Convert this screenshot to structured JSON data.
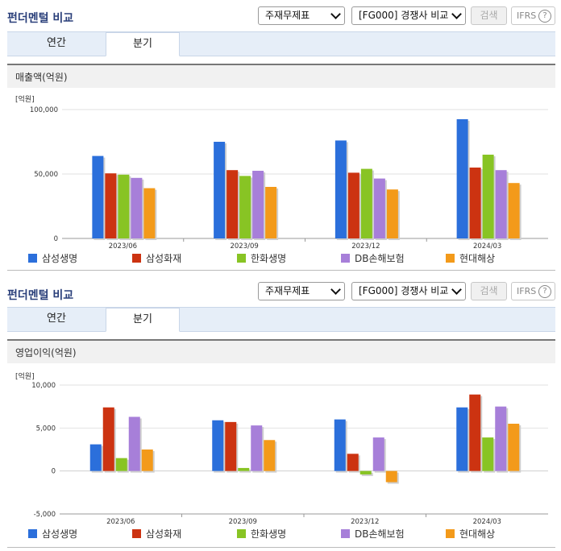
{
  "panels": [
    {
      "title": "펀더멘털 비교",
      "select1": "주재무제표",
      "select2": "[FG000] 경쟁사 비교",
      "search_label": "검색",
      "ifrs_label": "IFRS",
      "ifrs_help": "?",
      "tabs": [
        {
          "label": "연간"
        },
        {
          "label": "분기"
        }
      ],
      "active_tab": 1,
      "section_title": "매출액(억원)"
    },
    {
      "title": "펀더멘털 비교",
      "select1": "주재무제표",
      "select2": "[FG000] 경쟁사 비교",
      "search_label": "검색",
      "ifrs_label": "IFRS",
      "ifrs_help": "?",
      "tabs": [
        {
          "label": "연간"
        },
        {
          "label": "분기"
        }
      ],
      "active_tab": 1,
      "section_title": "영업이익(억원)"
    }
  ],
  "legend": [
    {
      "name": "삼성생명",
      "color": "#2b6fdb"
    },
    {
      "name": "삼성화재",
      "color": "#cc3311"
    },
    {
      "name": "한화생명",
      "color": "#88c424"
    },
    {
      "name": "DB손해보험",
      "color": "#a77fd9"
    },
    {
      "name": "현대해상",
      "color": "#f39a1a"
    }
  ],
  "chart_data": [
    {
      "type": "bar",
      "unit_label": "[억원]",
      "categories": [
        "2023/06",
        "2023/09",
        "2023/12",
        "2024/03"
      ],
      "ylim": [
        0,
        100000
      ],
      "ticks": [
        {
          "v": 100000,
          "label": "100,000"
        },
        {
          "v": 50000,
          "label": "50,000"
        },
        {
          "v": 0,
          "label": "0"
        }
      ],
      "series": [
        {
          "name": "삼성생명",
          "values": [
            64000,
            75000,
            76000,
            92500
          ]
        },
        {
          "name": "삼성화재",
          "values": [
            50500,
            53000,
            51000,
            55000
          ]
        },
        {
          "name": "한화생명",
          "values": [
            49500,
            48500,
            54000,
            65000
          ]
        },
        {
          "name": "DB손해보험",
          "values": [
            47000,
            52500,
            46500,
            53000
          ]
        },
        {
          "name": "현대해상",
          "values": [
            39000,
            40000,
            38000,
            43000
          ]
        }
      ]
    },
    {
      "type": "bar",
      "unit_label": "[억원]",
      "categories": [
        "2023/06",
        "2023/09",
        "2023/12",
        "2024/03"
      ],
      "ylim": [
        -5000,
        10000
      ],
      "ticks": [
        {
          "v": 10000,
          "label": "10,000"
        },
        {
          "v": 5000,
          "label": "5,000"
        },
        {
          "v": 0,
          "label": "0"
        },
        {
          "v": -5000,
          "label": "-5,000"
        }
      ],
      "series": [
        {
          "name": "삼성생명",
          "values": [
            3100,
            5900,
            6000,
            7400
          ]
        },
        {
          "name": "삼성화재",
          "values": [
            7400,
            5700,
            2000,
            8900
          ]
        },
        {
          "name": "한화생명",
          "values": [
            1500,
            350,
            -400,
            3900
          ]
        },
        {
          "name": "DB손해보험",
          "values": [
            6300,
            5300,
            3900,
            7500
          ]
        },
        {
          "name": "현대해상",
          "values": [
            2500,
            3600,
            -1300,
            5500
          ]
        }
      ]
    }
  ]
}
